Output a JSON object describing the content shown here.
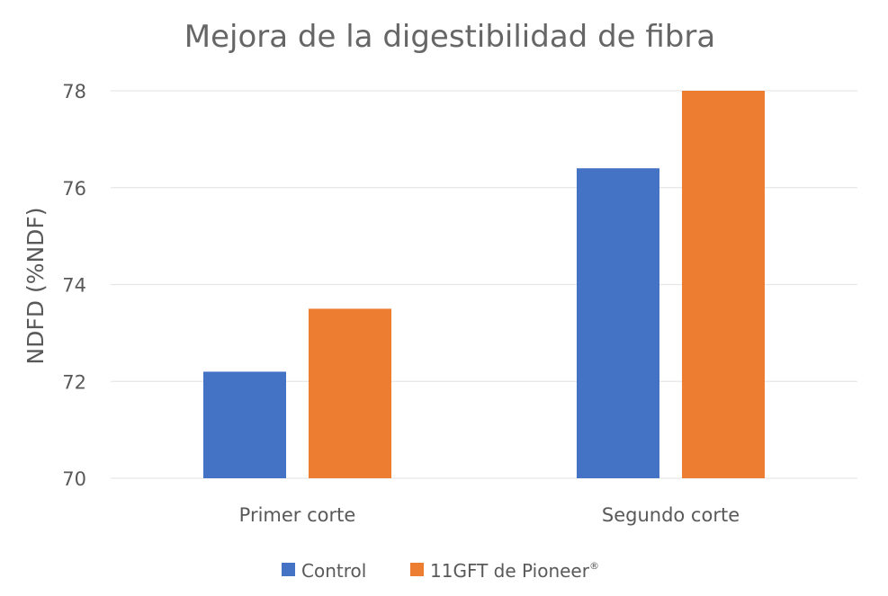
{
  "chart_data": {
    "type": "bar",
    "title": "Mejora de la digestibilidad de fibra",
    "xlabel": "",
    "ylabel": "NDFD (%NDF)",
    "categories": [
      "Primer corte",
      "Segundo corte"
    ],
    "series": [
      {
        "name": "Control",
        "values": [
          72.2,
          76.4
        ],
        "color": "#4472C4"
      },
      {
        "name": "11GFT de Pioneer",
        "values": [
          73.5,
          78.0
        ],
        "color": "#ED7D31"
      }
    ],
    "legend_marks": [
      "",
      "®"
    ],
    "ylim": [
      70,
      78
    ],
    "yticks": [
      "70",
      "72",
      "74",
      "76",
      "78"
    ],
    "grid": true,
    "legend_position": "bottom"
  }
}
